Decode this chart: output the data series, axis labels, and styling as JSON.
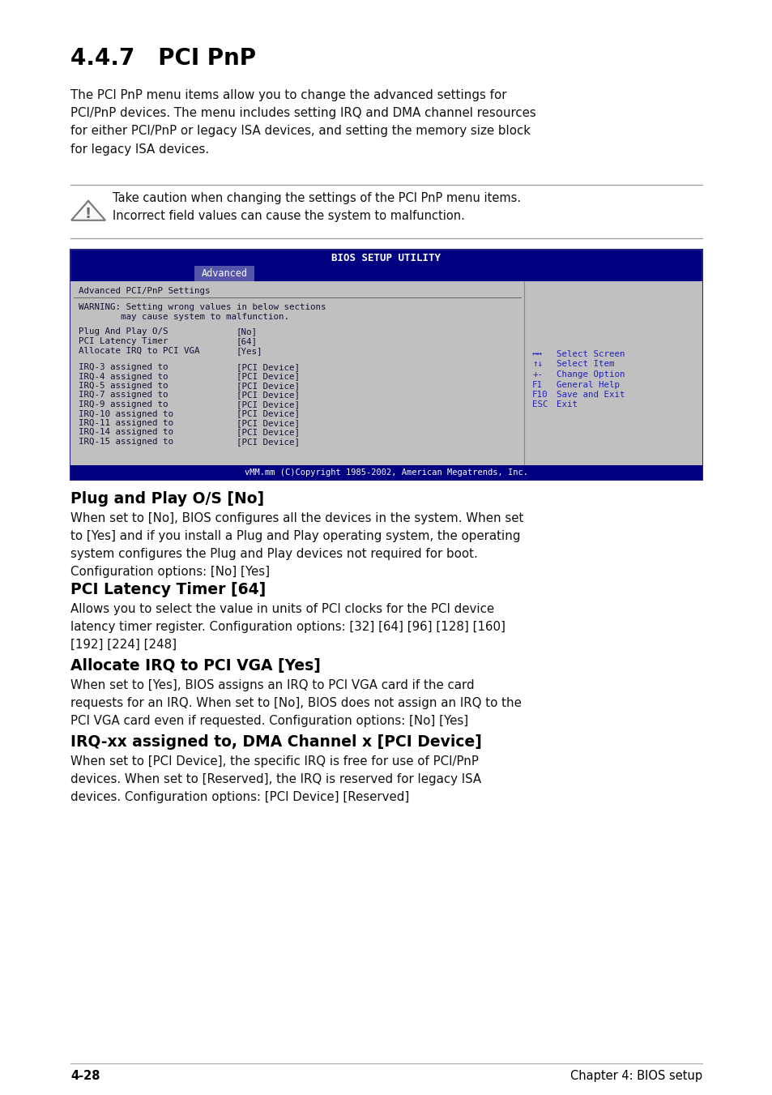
{
  "page_bg": "#ffffff",
  "title": "4.4.7   PCI PnP",
  "intro_text": "The PCI PnP menu items allow you to change the advanced settings for\nPCI/PnP devices. The menu includes setting IRQ and DMA channel resources\nfor either PCI/PnP or legacy ISA devices, and setting the memory size block\nfor legacy ISA devices.",
  "caution_text": "Take caution when changing the settings of the PCI PnP menu items.\nIncorrect field values can cause the system to malfunction.",
  "bios_title": "BIOS SETUP UTILITY",
  "bios_tab": "Advanced",
  "bios_bg": "#000080",
  "bios_content_bg": "#c0c0c0",
  "bios_header": "Advanced PCI/PnP Settings",
  "bios_warning_line1": "WARNING: Setting wrong values in below sections",
  "bios_warning_line2": "        may cause system to malfunction.",
  "bios_settings": [
    [
      "Plug And Play O/S",
      "[No]"
    ],
    [
      "PCI Latency Timer",
      "[64]"
    ],
    [
      "Allocate IRQ to PCI VGA",
      "[Yes]"
    ]
  ],
  "bios_irq": [
    [
      "IRQ-3 assigned to",
      "[PCI Device]"
    ],
    [
      "IRQ-4 assigned to",
      "[PCI Device]"
    ],
    [
      "IRQ-5 assigned to",
      "[PCI Device]"
    ],
    [
      "IRQ-7 assigned to",
      "[PCI Device]"
    ],
    [
      "IRQ-9 assigned to",
      "[PCI Device]"
    ],
    [
      "IRQ-10 assigned to",
      "[PCI Device]"
    ],
    [
      "IRQ-11 assigned to",
      "[PCI Device]"
    ],
    [
      "IRQ-14 assigned to",
      "[PCI Device]"
    ],
    [
      "IRQ-15 assigned to",
      "[PCI Device]"
    ]
  ],
  "bios_nav": [
    [
      "↔↔",
      "Select Screen"
    ],
    [
      "↑↓",
      "Select Item"
    ],
    [
      "+-",
      "Change Option"
    ],
    [
      "F1",
      "General Help"
    ],
    [
      "F10",
      "Save and Exit"
    ],
    [
      "ESC",
      "Exit"
    ]
  ],
  "bios_footer": "vMM.mm (C)Copyright 1985-2002, American Megatrends, Inc.",
  "section1_title": "Plug and Play O/S [No]",
  "section1_text": "When set to [No], BIOS configures all the devices in the system. When set\nto [Yes] and if you install a Plug and Play operating system, the operating\nsystem configures the Plug and Play devices not required for boot.\nConfiguration options: [No] [Yes]",
  "section2_title": "PCI Latency Timer [64]",
  "section2_text": "Allows you to select the value in units of PCI clocks for the PCI device\nlatency timer register. Configuration options: [32] [64] [96] [128] [160]\n[192] [224] [248]",
  "section3_title": "Allocate IRQ to PCI VGA [Yes]",
  "section3_text": "When set to [Yes], BIOS assigns an IRQ to PCI VGA card if the card\nrequests for an IRQ. When set to [No], BIOS does not assign an IRQ to the\nPCI VGA card even if requested. Configuration options: [No] [Yes]",
  "section4_title": "IRQ-xx assigned to, DMA Channel x [PCI Device]",
  "section4_text": "When set to [PCI Device], the specific IRQ is free for use of PCI/PnP\ndevices. When set to [Reserved], the IRQ is reserved for legacy ISA\ndevices. Configuration options: [PCI Device] [Reserved]",
  "footer_left": "4-28",
  "footer_right": "Chapter 4: BIOS setup"
}
